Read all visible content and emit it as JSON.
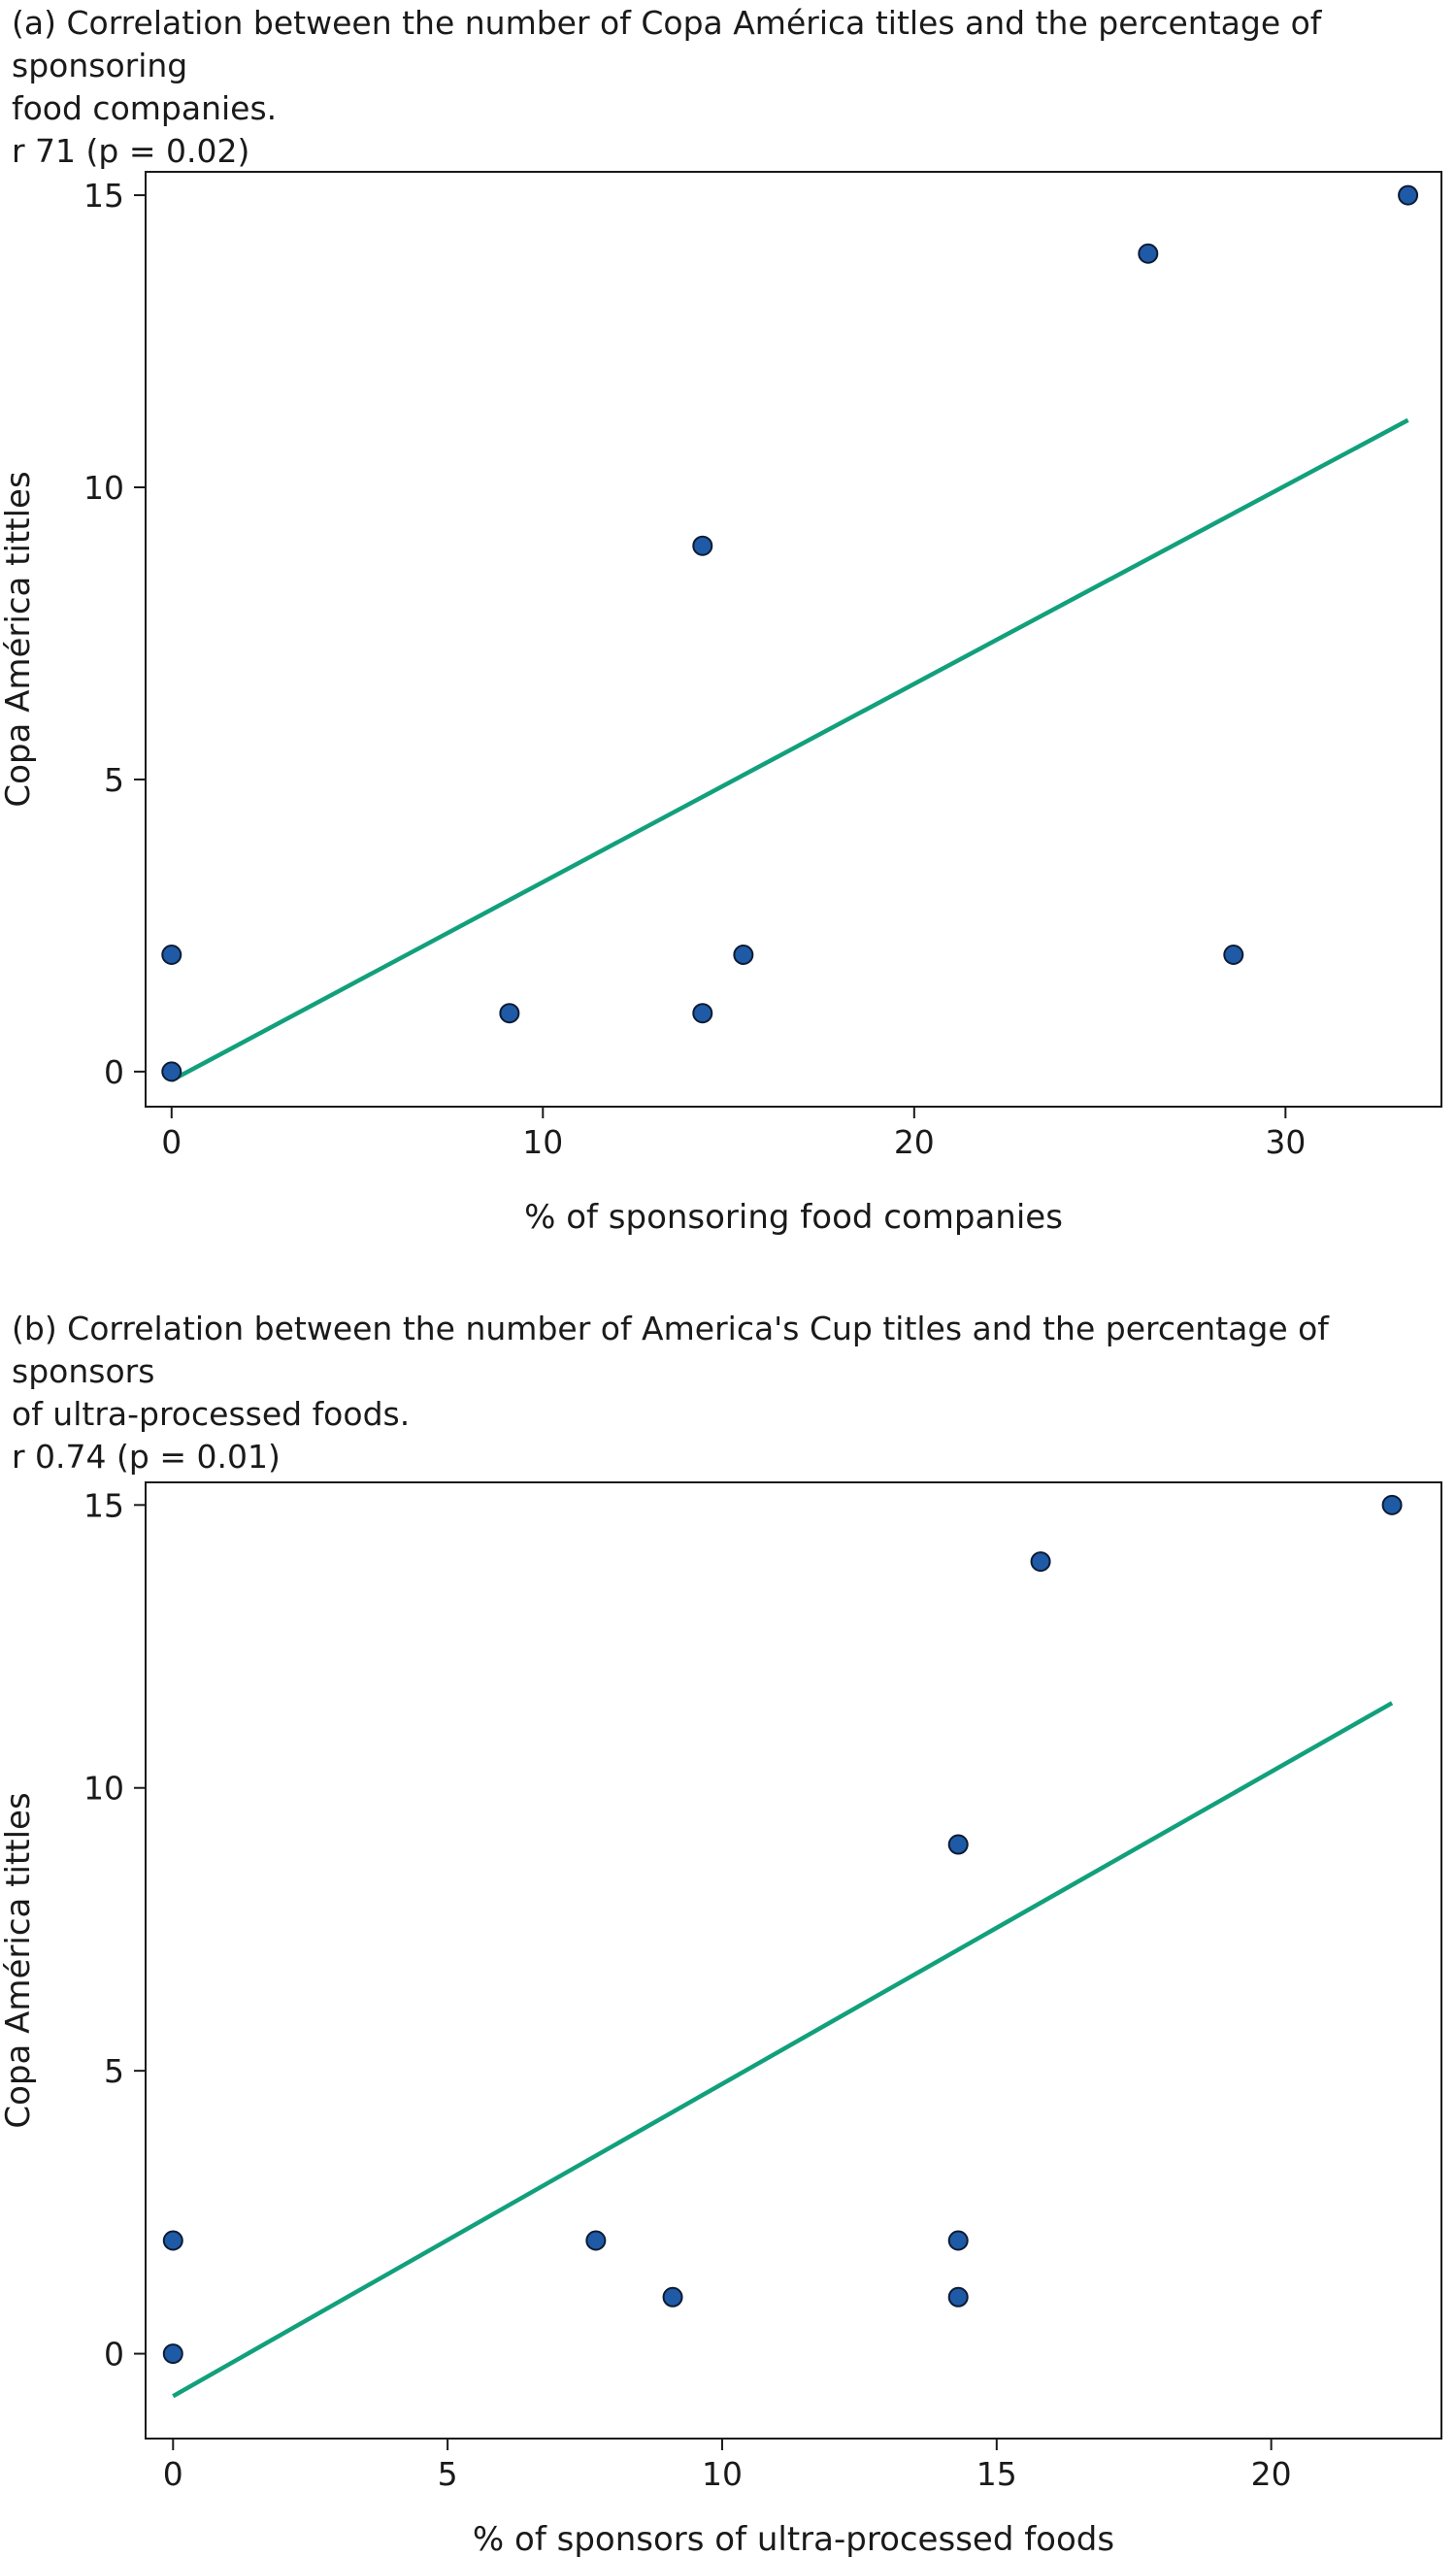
{
  "chart_data": [
    {
      "type": "scatter",
      "title_lines": [
        "(a) Correlation between the number of Copa América titles and the percentage of sponsoring",
        "food companies.",
        "r 71 (p = 0.02)"
      ],
      "xlabel": "% of sponsoring food companies",
      "ylabel": "Copa América tittles",
      "xlim": [
        -0.7,
        34.2
      ],
      "ylim": [
        -0.6,
        15.4
      ],
      "x_ticks": [
        0,
        10,
        20,
        30
      ],
      "y_ticks": [
        0,
        5,
        10,
        15
      ],
      "grid": false,
      "points": [
        {
          "x": 0,
          "y": 2
        },
        {
          "x": 0,
          "y": 0
        },
        {
          "x": 9.1,
          "y": 1
        },
        {
          "x": 14.3,
          "y": 9
        },
        {
          "x": 14.3,
          "y": 1
        },
        {
          "x": 15.4,
          "y": 2
        },
        {
          "x": 26.3,
          "y": 14
        },
        {
          "x": 28.6,
          "y": 2
        },
        {
          "x": 33.3,
          "y": 15
        }
      ],
      "fit_line": {
        "x": [
          0,
          33.3
        ],
        "y": [
          -0.15,
          11.15
        ]
      },
      "colors": {
        "point": "#1f5aa6",
        "point_edge": "#0d1b33",
        "fit_line": "#12a07c",
        "axis": "#1a1a1a"
      }
    },
    {
      "type": "scatter",
      "title_lines": [
        "(b) Correlation between the number of America's Cup titles and the percentage of sponsors",
        "of ultra-processed foods.",
        "r 0.74 (p = 0.01)"
      ],
      "xlabel": "% of sponsors of ultra-processed foods",
      "ylabel": "Copa América tittles",
      "xlim": [
        -0.5,
        23.1
      ],
      "ylim": [
        -1.5,
        15.4
      ],
      "x_ticks": [
        0,
        5,
        10,
        15,
        20
      ],
      "y_ticks": [
        0,
        5,
        10,
        15
      ],
      "grid": false,
      "points": [
        {
          "x": 0,
          "y": 2
        },
        {
          "x": 0,
          "y": 0
        },
        {
          "x": 7.7,
          "y": 2
        },
        {
          "x": 9.1,
          "y": 1
        },
        {
          "x": 14.3,
          "y": 9
        },
        {
          "x": 14.3,
          "y": 2
        },
        {
          "x": 14.3,
          "y": 1
        },
        {
          "x": 15.8,
          "y": 14
        },
        {
          "x": 22.2,
          "y": 15
        }
      ],
      "fit_line": {
        "x": [
          0,
          22.2
        ],
        "y": [
          -0.75,
          11.5
        ]
      },
      "colors": {
        "point": "#1f5aa6",
        "point_edge": "#0d1b33",
        "fit_line": "#12a07c",
        "axis": "#1a1a1a"
      }
    }
  ]
}
